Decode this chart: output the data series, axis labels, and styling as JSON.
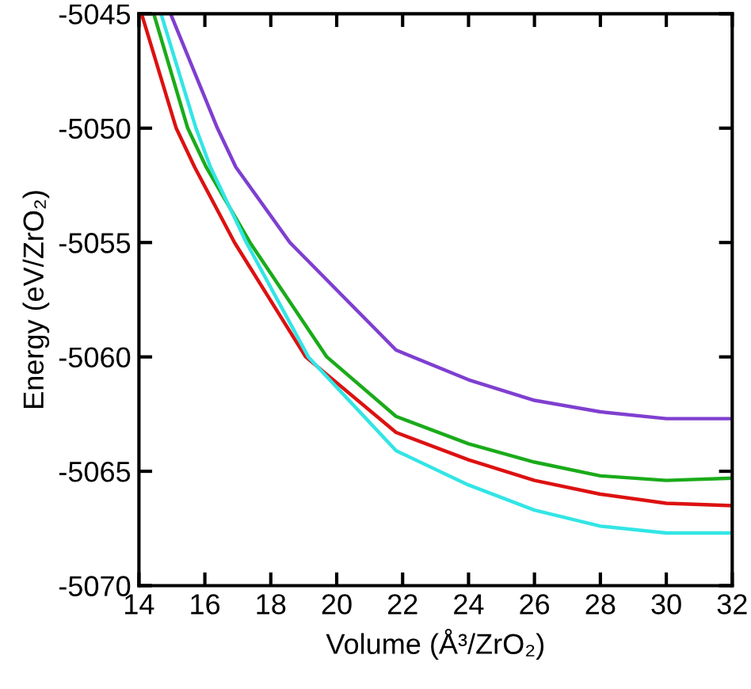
{
  "chart_data": {
    "type": "line",
    "xlabel": "Volume (Å³/ZrO₂)",
    "ylabel": "Energy (eV/ZrO₂)",
    "xlim": [
      14,
      32
    ],
    "ylim": [
      -5070,
      -5045
    ],
    "xticks": [
      14,
      16,
      18,
      20,
      22,
      24,
      26,
      28,
      30,
      32
    ],
    "yticks": [
      -5070,
      -5065,
      -5060,
      -5055,
      -5050,
      -5045
    ],
    "grid": false,
    "legend": false,
    "marker": "none",
    "line_style": "solid",
    "series": [
      {
        "color": "#7f3fd0",
        "x": [
          14.96,
          16.38,
          16.94,
          18.58,
          21.8,
          24,
          26,
          28,
          30,
          32
        ],
        "values": [
          -5045,
          -5050,
          -5051.7,
          -5055,
          -5059.7,
          -5061.0,
          -5061.9,
          -5062.4,
          -5062.7,
          -5062.7
        ]
      },
      {
        "color": "#1aab1a",
        "x": [
          14.45,
          15.48,
          16.04,
          17.37,
          19.7,
          21.8,
          24,
          26,
          28,
          30,
          32
        ],
        "values": [
          -5045,
          -5050,
          -5051.7,
          -5055,
          -5060,
          -5062.6,
          -5063.8,
          -5064.6,
          -5065.2,
          -5065.4,
          -5065.3
        ]
      },
      {
        "color": "#dd1111",
        "x": [
          14.08,
          15.13,
          15.69,
          16.9,
          19.06,
          21.8,
          24,
          26,
          28,
          30,
          32
        ],
        "values": [
          -5045,
          -5050,
          -5051.7,
          -5055,
          -5060,
          -5063.3,
          -5064.5,
          -5065.4,
          -5066.0,
          -5066.4,
          -5066.5
        ]
      },
      {
        "color": "#33e5e5",
        "x": [
          14.67,
          15.73,
          16.17,
          17.26,
          19.14,
          21.8,
          24,
          26,
          28,
          30,
          32
        ],
        "values": [
          -5045,
          -5050,
          -5051.7,
          -5055,
          -5060,
          -5064.1,
          -5065.6,
          -5066.7,
          -5067.4,
          -5067.7,
          -5067.7
        ]
      }
    ]
  }
}
